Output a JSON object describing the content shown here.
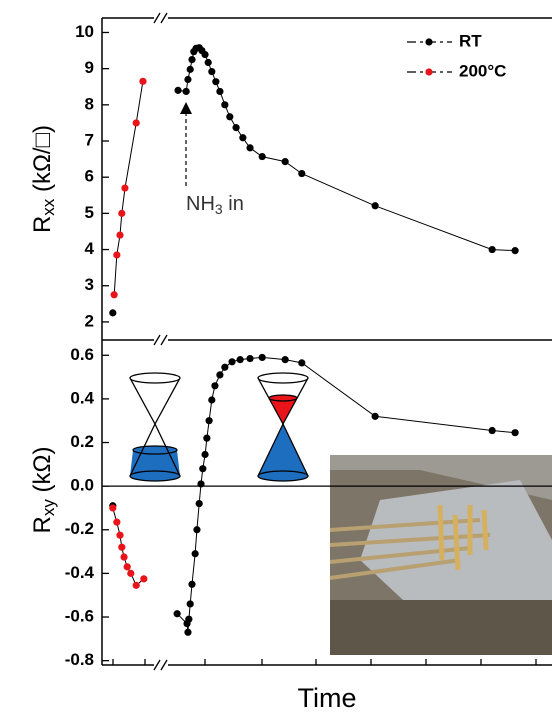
{
  "chart_data": [
    {
      "type": "line",
      "y_label": {
        "main": "R",
        "sub": "xx",
        "rest": " (kΩ/□)"
      },
      "annotation": {
        "main": "NH",
        "sub": "3",
        "rest": " in"
      },
      "xlim": [
        0,
        100
      ],
      "ylim": [
        1.5,
        10.4
      ],
      "yticks": [
        2,
        3,
        4,
        5,
        6,
        7,
        8,
        9,
        10
      ],
      "legend": "upper right",
      "series": [
        {
          "name": "RT",
          "color": "#000000",
          "x": [
            2.4,
            null,
            16.9,
            18.7,
            19.1,
            19.6,
            20.0,
            20.4,
            20.9,
            21.6,
            22.2,
            22.9,
            23.6,
            24.4,
            25.3,
            26.2,
            27.3,
            28.4,
            29.8,
            31.3,
            32.9,
            35.6,
            40.7,
            44.4,
            60.7,
            86.7,
            91.8
          ],
          "values": [
            2.25,
            null,
            8.4,
            8.37,
            8.7,
            8.98,
            9.25,
            9.47,
            9.56,
            9.58,
            9.5,
            9.39,
            9.17,
            8.92,
            8.64,
            8.37,
            8.0,
            7.67,
            7.37,
            7.09,
            6.81,
            6.57,
            6.43,
            6.1,
            5.21,
            4.0,
            3.97
          ]
        },
        {
          "name": "200°C",
          "color": "#e8141a",
          "x": [
            2.7,
            3.3,
            4.0,
            4.4,
            5.1,
            7.6,
            9.1
          ],
          "values": [
            2.75,
            3.85,
            4.4,
            5.0,
            5.7,
            7.5,
            8.65
          ]
        }
      ]
    },
    {
      "type": "line",
      "y_label": {
        "main": "R",
        "sub": "xy",
        "rest": " (kΩ)"
      },
      "x_label": "Time",
      "xlim": [
        0,
        100
      ],
      "ylim": [
        -0.82,
        0.67
      ],
      "yticks": [
        -0.8,
        -0.6,
        -0.4,
        -0.2,
        {
          "value": 0,
          "label": "0.0"
        },
        0.2,
        0.4,
        0.6
      ],
      "series": [
        {
          "name": "RT",
          "color": "#000000",
          "x": [
            2.4,
            null,
            16.7,
            18.9,
            19.1,
            19.3,
            19.6,
            20.0,
            20.7,
            21.1,
            21.6,
            22.0,
            22.4,
            22.9,
            23.3,
            23.8,
            24.4,
            25.1,
            26.2,
            27.3,
            28.9,
            30.7,
            32.9,
            35.6,
            40.7,
            44.4,
            60.7,
            86.7,
            91.8
          ],
          "values": [
            -0.09,
            null,
            -0.585,
            -0.63,
            -0.67,
            -0.61,
            -0.54,
            -0.45,
            -0.31,
            -0.2,
            -0.08,
            0.01,
            0.08,
            0.145,
            0.22,
            0.3,
            0.395,
            0.46,
            0.51,
            0.545,
            0.57,
            0.58,
            0.585,
            0.59,
            0.58,
            0.565,
            0.32,
            0.255,
            0.245
          ]
        },
        {
          "name": "200°C",
          "color": "#e8141a",
          "x": [
            2.4,
            3.3,
            4.0,
            4.4,
            4.9,
            5.6,
            6.4,
            7.6,
            9.3
          ],
          "values": [
            -0.1,
            -0.165,
            -0.225,
            -0.28,
            -0.325,
            -0.37,
            -0.4,
            -0.455,
            -0.425
          ]
        }
      ]
    }
  ]
}
